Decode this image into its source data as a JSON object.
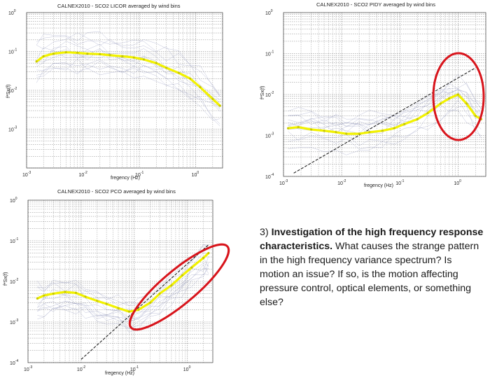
{
  "chart_data": [
    {
      "type": "line",
      "title": "CALNEX2010 - SCO2 LICOR averaged by wind bins",
      "xlabel": "fregency (Hz)",
      "ylabel": "f*Sx(f)",
      "xscale": "log",
      "yscale": "log",
      "xlim": [
        0.001,
        3
      ],
      "ylim": [
        0.0001,
        1
      ],
      "x_ticks": [
        "10^-3",
        "10^-2",
        "10^-1",
        "10^0"
      ],
      "y_ticks": [
        "10^0",
        "10^-1",
        "10^-2",
        "10^-3"
      ],
      "grid": true,
      "series": [
        {
          "color": "#f2f200",
          "x": [
            0.0015,
            0.002,
            0.003,
            0.005,
            0.008,
            0.012,
            0.02,
            0.03,
            0.05,
            0.08,
            0.12,
            0.2,
            0.3,
            0.5,
            0.8,
            1.2,
            2.0,
            2.7
          ],
          "y": [
            0.055,
            0.075,
            0.088,
            0.095,
            0.092,
            0.088,
            0.085,
            0.08,
            0.075,
            0.07,
            0.062,
            0.05,
            0.038,
            0.028,
            0.02,
            0.012,
            0.006,
            0.004
          ]
        }
      ]
    },
    {
      "type": "line",
      "title": "CALNEX2010 - SCO2 PIDY averaged by wind bins",
      "xlabel": "fregency (Hz)",
      "ylabel": "f*Sx(f)",
      "xscale": "log",
      "yscale": "log",
      "xlim": [
        0.001,
        3
      ],
      "ylim": [
        0.0001,
        1
      ],
      "x_ticks": [
        "10^-3",
        "10^-2",
        "10^-1",
        "10^0"
      ],
      "y_ticks": [
        "10^0",
        "10^-1",
        "10^-2",
        "10^-3",
        "10^-4"
      ],
      "grid": true,
      "series": [
        {
          "color": "#f2f200",
          "x": [
            0.0012,
            0.0018,
            0.003,
            0.005,
            0.008,
            0.012,
            0.02,
            0.03,
            0.05,
            0.08,
            0.12,
            0.2,
            0.3,
            0.5,
            0.7,
            1.0,
            1.4,
            2.0,
            2.5
          ],
          "y": [
            0.0015,
            0.0016,
            0.0014,
            0.0013,
            0.0012,
            0.0011,
            0.0011,
            0.0012,
            0.0013,
            0.0015,
            0.0019,
            0.0025,
            0.0035,
            0.006,
            0.008,
            0.01,
            0.006,
            0.003,
            0.0025
          ]
        }
      ],
      "reference_line": {
        "x": [
          0.0015,
          2.0
        ],
        "y": [
          0.00012,
          0.045
        ]
      },
      "annotation": "red ellipse around high-frequency region"
    },
    {
      "type": "line",
      "title": "CALNEX2010 - SCO2 PCO averaged by wind bins",
      "xlabel": "fregency (Hz)",
      "ylabel": "f*Sx(f)",
      "xscale": "log",
      "yscale": "log",
      "xlim": [
        0.001,
        3
      ],
      "ylim": [
        0.0001,
        1
      ],
      "x_ticks": [
        "10^-3",
        "10^-2",
        "10^-1",
        "10^0"
      ],
      "y_ticks": [
        "10^0",
        "10^-1",
        "10^-2",
        "10^-3",
        "10^-4"
      ],
      "grid": true,
      "series": [
        {
          "color": "#f2f200",
          "x": [
            0.0015,
            0.002,
            0.003,
            0.005,
            0.008,
            0.012,
            0.02,
            0.03,
            0.05,
            0.08,
            0.12,
            0.2,
            0.3,
            0.5,
            0.8,
            1.2,
            2.0,
            2.5
          ],
          "y": [
            0.0038,
            0.0045,
            0.005,
            0.0055,
            0.0052,
            0.0042,
            0.0033,
            0.0028,
            0.0022,
            0.0018,
            0.002,
            0.003,
            0.005,
            0.008,
            0.014,
            0.022,
            0.038,
            0.05
          ]
        }
      ],
      "reference_line": {
        "x": [
          0.01,
          2.5
        ],
        "y": [
          0.00012,
          0.08
        ]
      },
      "annotation": "red ellipse around rising high-frequency segment"
    }
  ],
  "description": {
    "number": "3) ",
    "bold": "Investigation of the high frequency response characteristics.",
    "rest": "  What causes the strange pattern in the high frequency variance spectrum?  Is motion an issue?  If so, is the motion affecting pressure control, optical elements, or something else?"
  },
  "colors": {
    "highlight_curve": "#f2f200",
    "bundle_curves": "#8a8fb8",
    "annotation_ellipse": "#d8141b",
    "reference_line": "#111111"
  }
}
